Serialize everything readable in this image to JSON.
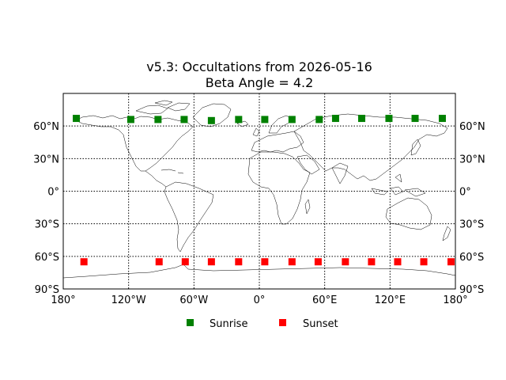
{
  "chart_data": {
    "type": "scatter",
    "title": "v5.3: Occultations from 2026-05-16",
    "subtitle": "Beta Angle = 4.2",
    "xlabel": "",
    "ylabel": "",
    "xlim": [
      -180,
      180
    ],
    "ylim": [
      -90,
      90
    ],
    "grid": true,
    "legend_position": "bottom",
    "x_ticks": [
      -180,
      -120,
      -60,
      0,
      60,
      120,
      180
    ],
    "x_tick_labels": [
      "180°",
      "120°W",
      "60°W",
      "0°",
      "60°E",
      "120°E",
      "180°"
    ],
    "y_ticks": [
      60,
      30,
      0,
      -30,
      -60,
      -90
    ],
    "y_tick_labels": [
      "60°N",
      "30°N",
      "0°",
      "30°S",
      "60°S",
      "90°S"
    ],
    "series": [
      {
        "name": "Sunrise",
        "color": "#008000",
        "marker": "square",
        "x": [
          -168,
          -118,
          -93,
          -69,
          -44,
          -19,
          5,
          30,
          55,
          70,
          94,
          119,
          143,
          168
        ],
        "y": [
          67,
          66,
          66,
          66,
          65,
          66,
          66,
          66,
          66,
          67,
          67,
          67,
          67,
          67
        ]
      },
      {
        "name": "Sunset",
        "color": "#ff0000",
        "marker": "square",
        "x": [
          -161,
          -92,
          -68,
          -44,
          -19,
          5,
          30,
          54,
          79,
          103,
          127,
          151,
          176
        ],
        "y": [
          -65,
          -65,
          -65,
          -65,
          -65,
          -65,
          -65,
          -65,
          -65,
          -65,
          -65,
          -65,
          -65
        ]
      }
    ]
  }
}
